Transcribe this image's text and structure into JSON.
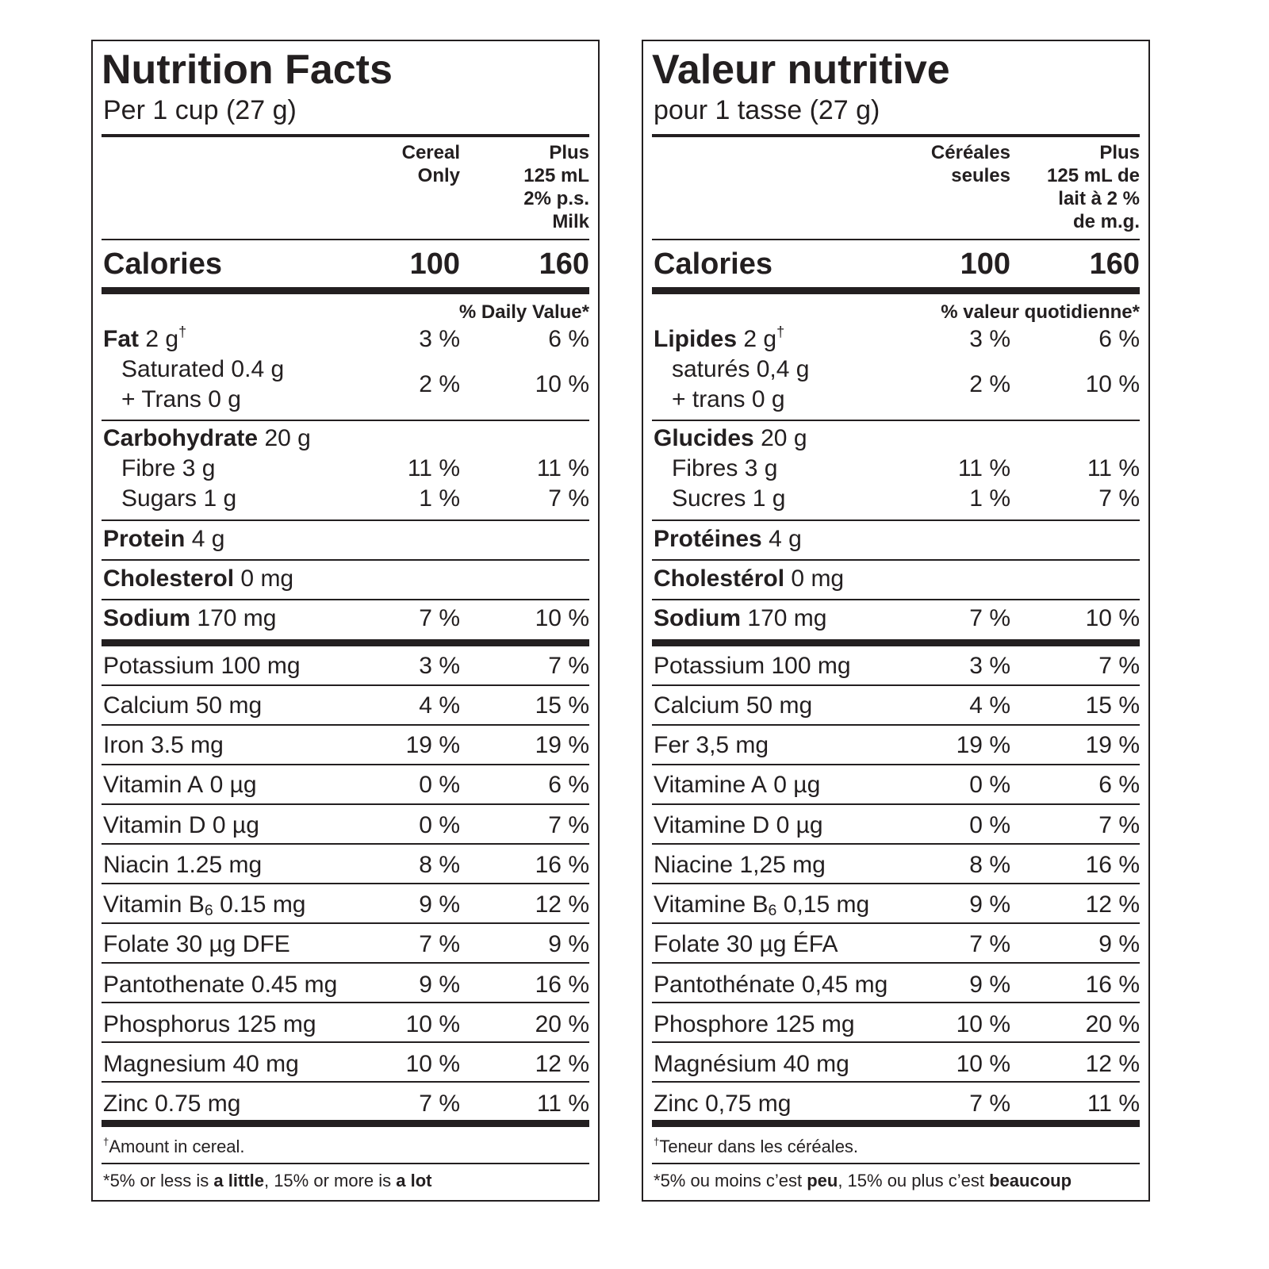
{
  "labels": [
    {
      "title": "Nutrition Facts",
      "serving": "Per 1 cup (27 g)",
      "columns": [
        [
          "Cereal",
          "Only"
        ],
        [
          "Plus",
          "125 mL",
          "2% p.s.",
          "Milk"
        ]
      ],
      "calories": {
        "label": "Calories",
        "values": [
          "100",
          "160"
        ]
      },
      "dv_heading": "% Daily Value*",
      "rows": [
        {
          "name": "Fat",
          "amount": "2 g",
          "mark": "†",
          "bold": true,
          "dv": [
            "3 %",
            "6 %"
          ]
        },
        {
          "lines": [
            "Saturated 0.4 g",
            "+ Trans 0 g"
          ],
          "indent": true,
          "dv": [
            "2 %",
            "10 %"
          ]
        },
        {
          "name": "Carbohydrate",
          "amount": "20 g",
          "bold": true
        },
        {
          "name": "Fibre",
          "amount": "3 g",
          "indent": true,
          "dv": [
            "11 %",
            "11 %"
          ]
        },
        {
          "name": "Sugars",
          "amount": "1 g",
          "indent": true,
          "dv": [
            "1 %",
            "7 %"
          ]
        },
        {
          "name": "Protein",
          "amount": "4 g",
          "bold": true
        },
        {
          "name": "Cholesterol",
          "amount": "0 mg",
          "bold": true
        },
        {
          "name": "Sodium",
          "amount": "170 mg",
          "bold": true,
          "dv": [
            "7 %",
            "10 %"
          ]
        },
        {
          "name": "Potassium",
          "amount": "100 mg",
          "dv": [
            "3 %",
            "7 %"
          ]
        },
        {
          "name": "Calcium",
          "amount": "50 mg",
          "dv": [
            "4 %",
            "15 %"
          ]
        },
        {
          "name": "Iron",
          "amount": "3.5 mg",
          "dv": [
            "19 %",
            "19 %"
          ]
        },
        {
          "name": "Vitamin A",
          "amount": "0 µg",
          "dv": [
            "0 %",
            "6 %"
          ]
        },
        {
          "name": "Vitamin D",
          "amount": "0 µg",
          "dv": [
            "0 %",
            "7 %"
          ]
        },
        {
          "name": "Niacin",
          "amount": "1.25 mg",
          "dv": [
            "8 %",
            "16 %"
          ]
        },
        {
          "name": "Vitamin B",
          "sub": "6",
          "amount": "0.15 mg",
          "dv": [
            "9 %",
            "12 %"
          ]
        },
        {
          "name": "Folate",
          "amount": "30 µg DFE",
          "dv": [
            "7 %",
            "9 %"
          ]
        },
        {
          "name": "Pantothenate",
          "amount": "0.45 mg",
          "dv": [
            "9 %",
            "16 %"
          ]
        },
        {
          "name": "Phosphorus",
          "amount": "125 mg",
          "dv": [
            "10 %",
            "20 %"
          ]
        },
        {
          "name": "Magnesium",
          "amount": "40 mg",
          "dv": [
            "10 %",
            "12 %"
          ]
        },
        {
          "name": "Zinc",
          "amount": "0.75 mg",
          "dv": [
            "7 %",
            "11 %"
          ]
        }
      ],
      "footnotes": [
        [
          {
            "text": "†",
            "sup": true
          },
          {
            "text": "Amount in cereal."
          }
        ],
        [
          {
            "text": "*"
          },
          {
            "text": "5% or less is "
          },
          {
            "text": "a little",
            "bold": true
          },
          {
            "text": ", 15% or more is "
          },
          {
            "text": "a lot",
            "bold": true
          }
        ]
      ]
    },
    {
      "title": "Valeur nutritive",
      "serving": "pour 1 tasse (27 g)",
      "columns": [
        [
          "Céréales",
          "seules"
        ],
        [
          "Plus",
          "125 mL de",
          "lait à 2 %",
          "de m.g."
        ]
      ],
      "calories": {
        "label": "Calories",
        "values": [
          "100",
          "160"
        ]
      },
      "dv_heading": "% valeur quotidienne*",
      "rows": [
        {
          "name": "Lipides",
          "amount": "2 g",
          "mark": "†",
          "bold": true,
          "dv": [
            "3 %",
            "6 %"
          ]
        },
        {
          "lines": [
            "saturés 0,4 g",
            "+ trans 0 g"
          ],
          "indent": true,
          "dv": [
            "2 %",
            "10 %"
          ]
        },
        {
          "name": "Glucides",
          "amount": "20 g",
          "bold": true
        },
        {
          "name": "Fibres",
          "amount": "3 g",
          "indent": true,
          "dv": [
            "11 %",
            "11 %"
          ]
        },
        {
          "name": "Sucres",
          "amount": "1 g",
          "indent": true,
          "dv": [
            "1 %",
            "7 %"
          ]
        },
        {
          "name": "Protéines",
          "amount": "4 g",
          "bold": true
        },
        {
          "name": "Cholestérol",
          "amount": "0 mg",
          "bold": true
        },
        {
          "name": "Sodium",
          "amount": "170 mg",
          "bold": true,
          "dv": [
            "7 %",
            "10 %"
          ]
        },
        {
          "name": "Potassium",
          "amount": "100 mg",
          "dv": [
            "3 %",
            "7 %"
          ]
        },
        {
          "name": "Calcium",
          "amount": "50 mg",
          "dv": [
            "4 %",
            "15 %"
          ]
        },
        {
          "name": "Fer",
          "amount": "3,5 mg",
          "dv": [
            "19 %",
            "19 %"
          ]
        },
        {
          "name": "Vitamine A",
          "amount": "0 µg",
          "dv": [
            "0 %",
            "6 %"
          ]
        },
        {
          "name": "Vitamine D",
          "amount": "0 µg",
          "dv": [
            "0 %",
            "7 %"
          ]
        },
        {
          "name": "Niacine",
          "amount": "1,25 mg",
          "dv": [
            "8 %",
            "16 %"
          ]
        },
        {
          "name": "Vitamine B",
          "sub": "6",
          "amount": "0,15 mg",
          "dv": [
            "9 %",
            "12 %"
          ]
        },
        {
          "name": "Folate",
          "amount": "30 µg ÉFA",
          "dv": [
            "7 %",
            "9 %"
          ]
        },
        {
          "name": "Pantothénate",
          "amount": "0,45 mg",
          "dv": [
            "9 %",
            "16 %"
          ]
        },
        {
          "name": "Phosphore",
          "amount": "125 mg",
          "dv": [
            "10 %",
            "20 %"
          ]
        },
        {
          "name": "Magnésium",
          "amount": "40 mg",
          "dv": [
            "10 %",
            "12 %"
          ]
        },
        {
          "name": "Zinc",
          "amount": "0,75 mg",
          "dv": [
            "7 %",
            "11 %"
          ]
        }
      ],
      "footnotes": [
        [
          {
            "text": "†",
            "sup": true
          },
          {
            "text": "Teneur dans les céréales."
          }
        ],
        [
          {
            "text": "*"
          },
          {
            "text": "5% ou moins c’est "
          },
          {
            "text": "peu",
            "bold": true
          },
          {
            "text": ", 15% ou plus c’est "
          },
          {
            "text": "beaucoup",
            "bold": true
          }
        ]
      ]
    }
  ]
}
